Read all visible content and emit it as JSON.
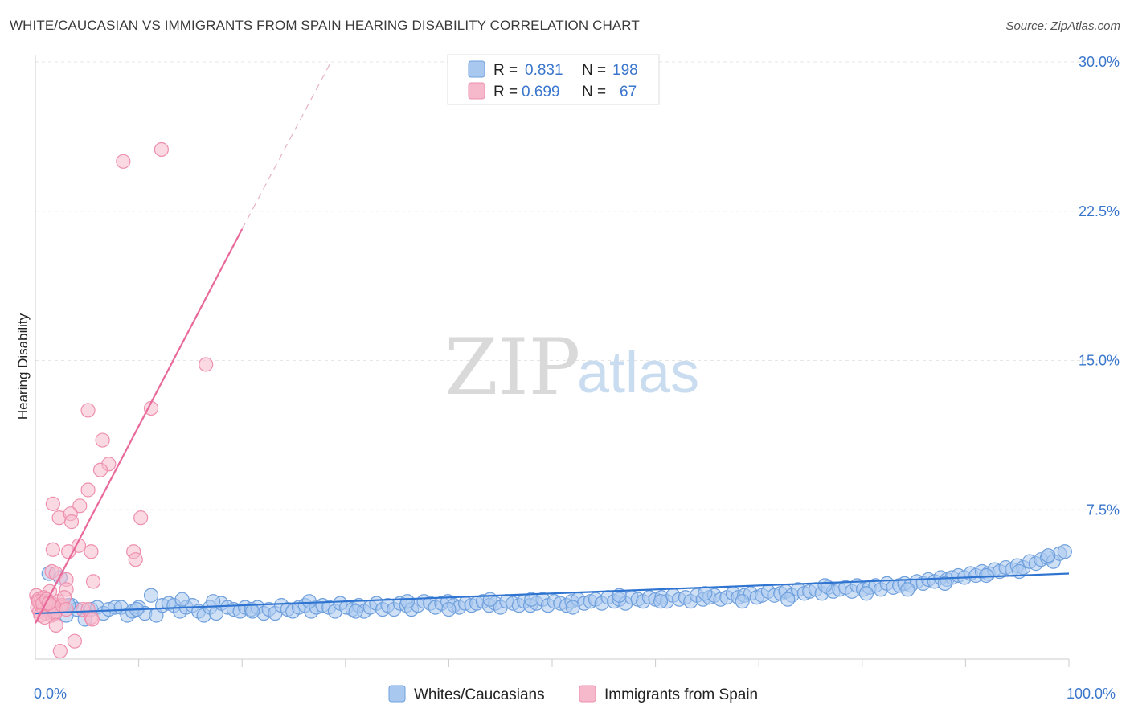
{
  "header": {
    "title": "WHITE/CAUCASIAN VS IMMIGRANTS FROM SPAIN HEARING DISABILITY CORRELATION CHART",
    "source": "Source: ZipAtlas.com"
  },
  "watermark": {
    "zip": "ZIP",
    "atlas": "atlas"
  },
  "legend": {
    "series1": {
      "r_label": "R =",
      "r_value": "0.831",
      "n_label": "N =",
      "n_value": "198"
    },
    "series2": {
      "r_label": "R =",
      "r_value": "0.699",
      "n_label": "N =",
      "n_value": "67"
    }
  },
  "bottom_legend": {
    "series1": "Whites/Caucasians",
    "series2": "Immigrants from Spain"
  },
  "colors": {
    "blue_fill": "#a9c8ef",
    "blue_stroke": "#6fa0dd",
    "blue_line": "#2f74d0",
    "pink_fill": "#f6b9cc",
    "pink_stroke": "#ee8fae",
    "pink_line": "#e8699a",
    "grid": "#e6e6e6",
    "tick_text": "#3a76cc"
  },
  "chart_data": {
    "type": "scatter",
    "title": "WHITE/CAUCASIAN VS IMMIGRANTS FROM SPAIN HEARING DISABILITY CORRELATION CHART",
    "xlabel": "",
    "ylabel": "Hearing Disability",
    "xlim": [
      0,
      100
    ],
    "ylim": [
      0,
      30
    ],
    "x_tick_labels": [
      "0.0%",
      "100.0%"
    ],
    "y_ticks": [
      7.5,
      15.0,
      22.5,
      30.0
    ],
    "y_tick_labels": [
      "7.5%",
      "15.0%",
      "22.5%",
      "30.0%"
    ],
    "grid": true,
    "series": [
      {
        "name": "Whites/Caucasians",
        "R": 0.831,
        "N": 198,
        "trend": {
          "x": [
            0,
            100
          ],
          "y": [
            2.3,
            4.3
          ]
        },
        "points": [
          [
            1.3,
            4.3
          ],
          [
            1.8,
            2.4
          ],
          [
            2.4,
            4.1
          ],
          [
            3.0,
            2.2
          ],
          [
            3.5,
            2.7
          ],
          [
            4.0,
            2.5
          ],
          [
            4.8,
            2.0
          ],
          [
            5.4,
            2.5
          ],
          [
            6.0,
            2.6
          ],
          [
            6.6,
            2.3
          ],
          [
            7.1,
            2.5
          ],
          [
            7.7,
            2.6
          ],
          [
            8.3,
            2.6
          ],
          [
            8.9,
            2.2
          ],
          [
            9.4,
            2.4
          ],
          [
            10.0,
            2.6
          ],
          [
            10.6,
            2.3
          ],
          [
            11.2,
            3.2
          ],
          [
            11.7,
            2.2
          ],
          [
            12.3,
            2.7
          ],
          [
            12.9,
            2.8
          ],
          [
            13.4,
            2.7
          ],
          [
            14.0,
            2.4
          ],
          [
            14.6,
            2.6
          ],
          [
            15.2,
            2.7
          ],
          [
            15.8,
            2.4
          ],
          [
            16.3,
            2.2
          ],
          [
            16.9,
            2.6
          ],
          [
            17.5,
            2.3
          ],
          [
            18.0,
            2.8
          ],
          [
            18.6,
            2.6
          ],
          [
            19.2,
            2.5
          ],
          [
            19.8,
            2.4
          ],
          [
            20.3,
            2.6
          ],
          [
            20.9,
            2.5
          ],
          [
            21.5,
            2.6
          ],
          [
            22.1,
            2.3
          ],
          [
            22.6,
            2.5
          ],
          [
            23.2,
            2.3
          ],
          [
            23.8,
            2.7
          ],
          [
            24.4,
            2.5
          ],
          [
            24.9,
            2.4
          ],
          [
            25.5,
            2.6
          ],
          [
            26.1,
            2.7
          ],
          [
            26.7,
            2.4
          ],
          [
            27.2,
            2.6
          ],
          [
            27.8,
            2.7
          ],
          [
            28.4,
            2.6
          ],
          [
            29.0,
            2.4
          ],
          [
            29.5,
            2.8
          ],
          [
            30.1,
            2.6
          ],
          [
            30.7,
            2.5
          ],
          [
            31.3,
            2.7
          ],
          [
            31.8,
            2.4
          ],
          [
            32.4,
            2.6
          ],
          [
            33.0,
            2.8
          ],
          [
            33.6,
            2.5
          ],
          [
            34.1,
            2.7
          ],
          [
            34.7,
            2.5
          ],
          [
            35.3,
            2.8
          ],
          [
            35.9,
            2.7
          ],
          [
            36.4,
            2.5
          ],
          [
            37.0,
            2.7
          ],
          [
            37.6,
            2.9
          ],
          [
            38.2,
            2.8
          ],
          [
            38.7,
            2.6
          ],
          [
            39.3,
            2.8
          ],
          [
            39.9,
            2.9
          ],
          [
            40.5,
            2.7
          ],
          [
            41.0,
            2.6
          ],
          [
            41.6,
            2.8
          ],
          [
            42.2,
            2.7
          ],
          [
            42.7,
            2.8
          ],
          [
            43.3,
            2.9
          ],
          [
            43.9,
            2.7
          ],
          [
            44.5,
            2.8
          ],
          [
            45.0,
            2.6
          ],
          [
            45.6,
            2.9
          ],
          [
            46.2,
            2.8
          ],
          [
            46.8,
            2.7
          ],
          [
            47.3,
            2.9
          ],
          [
            47.9,
            2.7
          ],
          [
            48.5,
            2.8
          ],
          [
            49.1,
            3.0
          ],
          [
            49.6,
            2.7
          ],
          [
            50.2,
            2.9
          ],
          [
            50.8,
            2.8
          ],
          [
            51.4,
            2.7
          ],
          [
            51.9,
            2.9
          ],
          [
            52.5,
            3.0
          ],
          [
            53.1,
            2.8
          ],
          [
            53.7,
            2.9
          ],
          [
            54.2,
            3.0
          ],
          [
            54.8,
            2.8
          ],
          [
            55.4,
            3.1
          ],
          [
            56.0,
            2.9
          ],
          [
            56.5,
            3.0
          ],
          [
            57.1,
            2.8
          ],
          [
            57.7,
            3.1
          ],
          [
            58.3,
            3.0
          ],
          [
            58.8,
            2.9
          ],
          [
            59.4,
            3.1
          ],
          [
            60.0,
            3.0
          ],
          [
            60.6,
            3.1
          ],
          [
            61.1,
            2.9
          ],
          [
            61.7,
            3.2
          ],
          [
            62.3,
            3.0
          ],
          [
            62.9,
            3.1
          ],
          [
            63.4,
            2.9
          ],
          [
            64.0,
            3.2
          ],
          [
            64.6,
            3.0
          ],
          [
            65.2,
            3.1
          ],
          [
            65.7,
            3.2
          ],
          [
            66.3,
            3.0
          ],
          [
            66.9,
            3.1
          ],
          [
            67.5,
            3.3
          ],
          [
            68.0,
            3.1
          ],
          [
            68.6,
            3.2
          ],
          [
            69.2,
            3.3
          ],
          [
            69.8,
            3.1
          ],
          [
            70.3,
            3.2
          ],
          [
            70.9,
            3.4
          ],
          [
            71.5,
            3.2
          ],
          [
            72.1,
            3.3
          ],
          [
            72.6,
            3.4
          ],
          [
            73.2,
            3.2
          ],
          [
            73.8,
            3.5
          ],
          [
            74.4,
            3.3
          ],
          [
            74.9,
            3.4
          ],
          [
            75.5,
            3.5
          ],
          [
            76.1,
            3.3
          ],
          [
            76.7,
            3.6
          ],
          [
            77.2,
            3.4
          ],
          [
            77.8,
            3.5
          ],
          [
            78.4,
            3.6
          ],
          [
            79.0,
            3.4
          ],
          [
            79.5,
            3.7
          ],
          [
            80.1,
            3.5
          ],
          [
            80.7,
            3.6
          ],
          [
            81.3,
            3.7
          ],
          [
            81.8,
            3.5
          ],
          [
            82.4,
            3.8
          ],
          [
            83.0,
            3.6
          ],
          [
            83.6,
            3.7
          ],
          [
            84.1,
            3.8
          ],
          [
            84.7,
            3.7
          ],
          [
            85.3,
            3.9
          ],
          [
            85.9,
            3.8
          ],
          [
            86.4,
            4.0
          ],
          [
            87.0,
            3.9
          ],
          [
            87.6,
            4.1
          ],
          [
            88.2,
            4.0
          ],
          [
            88.7,
            4.1
          ],
          [
            89.3,
            4.2
          ],
          [
            89.9,
            4.1
          ],
          [
            90.5,
            4.3
          ],
          [
            91.0,
            4.2
          ],
          [
            91.6,
            4.4
          ],
          [
            92.2,
            4.3
          ],
          [
            92.8,
            4.5
          ],
          [
            93.3,
            4.4
          ],
          [
            93.9,
            4.6
          ],
          [
            94.5,
            4.5
          ],
          [
            95.0,
            4.7
          ],
          [
            95.6,
            4.6
          ],
          [
            96.2,
            4.9
          ],
          [
            96.8,
            4.8
          ],
          [
            97.3,
            5.0
          ],
          [
            97.9,
            5.1
          ],
          [
            98.5,
            4.9
          ],
          [
            99.1,
            5.3
          ],
          [
            99.6,
            5.4
          ],
          [
            3.2,
            2.7
          ],
          [
            9.8,
            2.5
          ],
          [
            14.2,
            3.0
          ],
          [
            17.2,
            2.9
          ],
          [
            21.0,
            2.4
          ],
          [
            26.5,
            2.9
          ],
          [
            31.0,
            2.4
          ],
          [
            36.0,
            2.9
          ],
          [
            40.0,
            2.5
          ],
          [
            44.0,
            3.0
          ],
          [
            48.0,
            3.0
          ],
          [
            52.0,
            2.6
          ],
          [
            56.5,
            3.2
          ],
          [
            60.5,
            2.9
          ],
          [
            64.8,
            3.3
          ],
          [
            68.4,
            2.9
          ],
          [
            72.8,
            3.0
          ],
          [
            76.4,
            3.7
          ],
          [
            80.4,
            3.3
          ],
          [
            84.4,
            3.5
          ],
          [
            88.0,
            3.8
          ],
          [
            92.0,
            4.2
          ],
          [
            95.2,
            4.4
          ],
          [
            98.0,
            5.2
          ]
        ]
      },
      {
        "name": "Immigrants from Spain",
        "R": 0.699,
        "N": 67,
        "trend": {
          "x": [
            0,
            20
          ],
          "y": [
            1.8,
            21.6
          ]
        },
        "trend_dashed": {
          "x": [
            20,
            28.6
          ],
          "y": [
            21.6,
            30.0
          ]
        },
        "points": [
          [
            8.5,
            25.0
          ],
          [
            12.2,
            25.6
          ],
          [
            16.5,
            14.8
          ],
          [
            11.2,
            12.6
          ],
          [
            5.1,
            12.5
          ],
          [
            6.5,
            11.0
          ],
          [
            7.1,
            9.8
          ],
          [
            6.3,
            9.5
          ],
          [
            5.1,
            8.5
          ],
          [
            4.3,
            7.7
          ],
          [
            1.7,
            7.8
          ],
          [
            2.3,
            7.1
          ],
          [
            3.4,
            7.3
          ],
          [
            10.2,
            7.1
          ],
          [
            3.5,
            6.9
          ],
          [
            4.2,
            5.7
          ],
          [
            1.7,
            5.5
          ],
          [
            3.2,
            5.4
          ],
          [
            5.4,
            5.4
          ],
          [
            9.5,
            5.4
          ],
          [
            9.7,
            5.0
          ],
          [
            1.6,
            4.4
          ],
          [
            2.0,
            4.3
          ],
          [
            3.0,
            4.0
          ],
          [
            5.6,
            3.9
          ],
          [
            1.4,
            3.4
          ],
          [
            3.0,
            3.5
          ],
          [
            0.1,
            3.2
          ],
          [
            0.3,
            3.0
          ],
          [
            0.5,
            2.9
          ],
          [
            0.8,
            3.1
          ],
          [
            1.0,
            2.7
          ],
          [
            1.2,
            2.9
          ],
          [
            1.4,
            2.6
          ],
          [
            1.6,
            2.8
          ],
          [
            1.8,
            2.5
          ],
          [
            2.0,
            2.7
          ],
          [
            2.2,
            2.9
          ],
          [
            2.4,
            2.6
          ],
          [
            0.2,
            2.6
          ],
          [
            0.4,
            2.4
          ],
          [
            0.6,
            2.7
          ],
          [
            0.8,
            2.5
          ],
          [
            1.0,
            2.3
          ],
          [
            1.2,
            2.6
          ],
          [
            1.4,
            2.4
          ],
          [
            1.6,
            2.2
          ],
          [
            1.8,
            2.6
          ],
          [
            2.0,
            2.4
          ],
          [
            0.3,
            2.9
          ],
          [
            0.7,
            2.8
          ],
          [
            1.1,
            3.0
          ],
          [
            1.5,
            2.7
          ],
          [
            1.9,
            2.3
          ],
          [
            2.6,
            2.7
          ],
          [
            4.6,
            2.5
          ],
          [
            5.1,
            2.5
          ],
          [
            5.4,
            2.1
          ],
          [
            5.5,
            2.0
          ],
          [
            2.0,
            1.7
          ],
          [
            3.8,
            0.9
          ],
          [
            2.4,
            0.4
          ],
          [
            0.5,
            2.2
          ],
          [
            0.9,
            2.1
          ],
          [
            1.3,
            2.8
          ],
          [
            2.8,
            3.1
          ],
          [
            3.0,
            2.5
          ]
        ]
      }
    ]
  }
}
